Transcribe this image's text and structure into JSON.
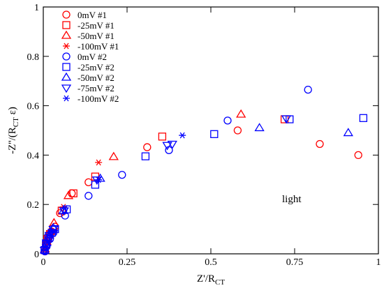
{
  "chart_data": {
    "type": "scatter",
    "xlabel_main": "Z'/R",
    "xlabel_sub": "CT",
    "ylabel_main": "-Z''/(R",
    "ylabel_sub": "CT",
    "ylabel_tail": " ε)",
    "xlim": [
      0,
      1
    ],
    "ylim": [
      0,
      1
    ],
    "x_ticks": [
      0,
      0.25,
      0.5,
      0.75,
      1
    ],
    "x_tick_labels": [
      "0",
      "0.25",
      "0.5",
      "0.75",
      "1"
    ],
    "y_ticks": [
      0,
      0.2,
      0.4,
      0.6,
      0.8,
      1
    ],
    "y_tick_labels": [
      "0",
      "0.2",
      "0.4",
      "0.6",
      "0.8",
      "1"
    ],
    "grid": false,
    "legend_position": "top-left",
    "annotation": "light",
    "series": [
      {
        "name": "0mV #1",
        "marker": "circle",
        "color": "#ff0000",
        "x": [
          0.005,
          0.008,
          0.012,
          0.018,
          0.025,
          0.035,
          0.05,
          0.085,
          0.135,
          0.31,
          0.58,
          0.825,
          0.94
        ],
        "y": [
          0.01,
          0.03,
          0.05,
          0.07,
          0.09,
          0.11,
          0.165,
          0.245,
          0.29,
          0.432,
          0.5,
          0.445,
          0.4
        ]
      },
      {
        "name": "-25mV #1",
        "marker": "square",
        "color": "#ff0000",
        "x": [
          0.004,
          0.008,
          0.012,
          0.02,
          0.03,
          0.055,
          0.09,
          0.155,
          0.355,
          0.72
        ],
        "y": [
          0.015,
          0.035,
          0.06,
          0.08,
          0.1,
          0.175,
          0.245,
          0.313,
          0.475,
          0.545
        ]
      },
      {
        "name": "-50mV #1",
        "marker": "triangle-up",
        "color": "#ff0000",
        "x": [
          0.005,
          0.01,
          0.02,
          0.032,
          0.075,
          0.21,
          0.59
        ],
        "y": [
          0.02,
          0.05,
          0.09,
          0.125,
          0.235,
          0.393,
          0.565
        ]
      },
      {
        "name": "-100mV #1",
        "marker": "asterisk",
        "color": "#ff0000",
        "x": [
          0.006,
          0.014,
          0.025,
          0.06,
          0.165
        ],
        "y": [
          0.02,
          0.05,
          0.09,
          0.19,
          0.37
        ]
      },
      {
        "name": "0mV #2",
        "marker": "circle",
        "color": "#0000ff",
        "x": [
          0.005,
          0.01,
          0.02,
          0.03,
          0.065,
          0.135,
          0.235,
          0.375,
          0.55,
          0.79
        ],
        "y": [
          0.01,
          0.03,
          0.06,
          0.085,
          0.155,
          0.235,
          0.32,
          0.42,
          0.54,
          0.665
        ]
      },
      {
        "name": "-25mV #2",
        "marker": "square",
        "color": "#0000ff",
        "x": [
          0.004,
          0.008,
          0.015,
          0.025,
          0.035,
          0.07,
          0.155,
          0.305,
          0.51,
          0.735,
          0.955
        ],
        "y": [
          0.015,
          0.04,
          0.065,
          0.085,
          0.1,
          0.18,
          0.28,
          0.395,
          0.485,
          0.545,
          0.55
        ]
      },
      {
        "name": "-50mV #2",
        "marker": "triangle-up",
        "color": "#0000ff",
        "x": [
          0.004,
          0.01,
          0.018,
          0.03,
          0.06,
          0.17,
          0.645,
          0.91
        ],
        "y": [
          0.015,
          0.045,
          0.075,
          0.105,
          0.175,
          0.305,
          0.51,
          0.49
        ]
      },
      {
        "name": "-75mV #2",
        "marker": "triangle-down",
        "color": "#0000ff",
        "x": [
          0.004,
          0.01,
          0.018,
          0.03,
          0.062,
          0.16,
          0.37,
          0.385,
          0.725
        ],
        "y": [
          0.015,
          0.045,
          0.075,
          0.1,
          0.175,
          0.3,
          0.44,
          0.445,
          0.548
        ]
      },
      {
        "name": "-100mV #2",
        "marker": "asterisk",
        "color": "#0000ff",
        "x": [
          0.005,
          0.012,
          0.022,
          0.032,
          0.065,
          0.165,
          0.415
        ],
        "y": [
          0.015,
          0.045,
          0.075,
          0.09,
          0.185,
          0.3,
          0.48
        ]
      }
    ]
  }
}
